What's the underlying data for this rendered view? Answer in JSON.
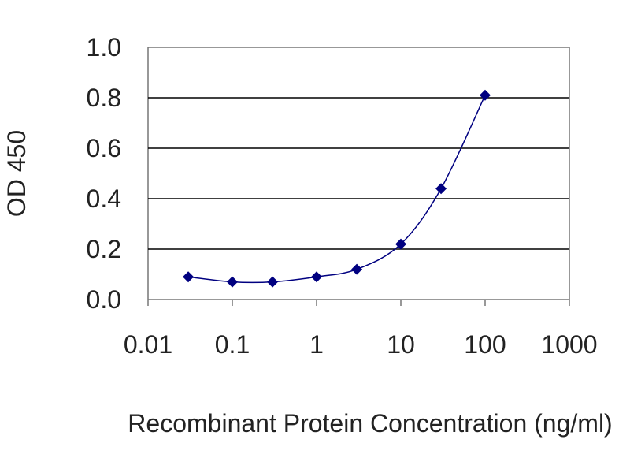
{
  "chart_data": {
    "type": "line",
    "title": "",
    "xlabel": "Recombinant Protein Concentration (ng/ml)",
    "ylabel": "OD 450",
    "x_scale": "log",
    "xlim": [
      0.01,
      1000
    ],
    "ylim": [
      0.0,
      1.0
    ],
    "x_ticks": [
      0.01,
      0.1,
      1,
      10,
      100,
      1000
    ],
    "x_tick_labels": [
      "0.01",
      "0.1",
      "1",
      "10",
      "100",
      "1000"
    ],
    "y_ticks": [
      0.0,
      0.2,
      0.4,
      0.6,
      0.8,
      1.0
    ],
    "y_tick_labels": [
      "0.0",
      "0.2",
      "0.4",
      "0.6",
      "0.8",
      "1.0"
    ],
    "grid": "horizontal",
    "legend": "none",
    "series": [
      {
        "x": [
          0.03,
          0.1,
          0.3,
          1,
          3,
          10,
          30,
          100
        ],
        "y": [
          0.09,
          0.07,
          0.07,
          0.09,
          0.12,
          0.22,
          0.44,
          0.81
        ],
        "marker": "diamond",
        "line": "smooth",
        "color": "#000080"
      }
    ],
    "colors": {
      "series": "#000080",
      "grid": "#000000",
      "frame": "#777777",
      "text": "#222222"
    }
  }
}
